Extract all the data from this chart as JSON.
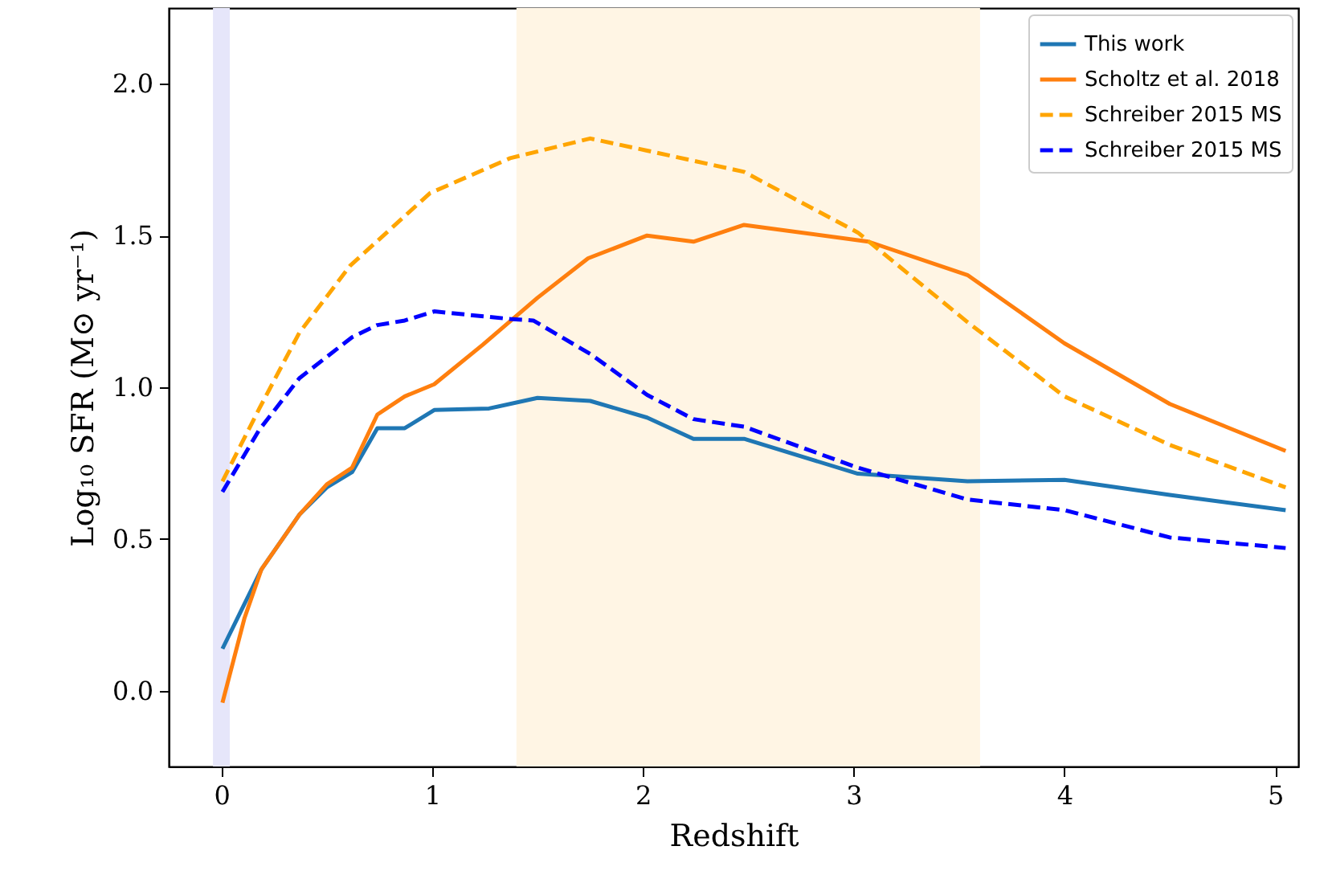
{
  "chart_data": {
    "type": "line",
    "xlabel": "Redshift",
    "ylabel": "Log₁₀ SFR (M⊙ yr⁻¹)",
    "xlim": [
      -0.25,
      5.11
    ],
    "ylim": [
      -0.25,
      2.25
    ],
    "xticks": [
      0,
      1,
      2,
      3,
      4,
      5
    ],
    "yticks": [
      {
        "value": 0,
        "label": "0.0"
      },
      {
        "value": 0.5,
        "label": "0.5"
      },
      {
        "value": 1,
        "label": "1.0"
      },
      {
        "value": 1.5,
        "label": "1.5"
      },
      {
        "value": 2,
        "label": "2.0"
      }
    ],
    "grid": false,
    "legend": "top right",
    "bands": [
      {
        "axis": "x",
        "from": -0.04,
        "to": 0.04,
        "color": "#e6e6fa"
      },
      {
        "axis": "x",
        "from": 1.4,
        "to": 3.6,
        "color": "#fff5e4"
      }
    ],
    "series": [
      {
        "name": "This work",
        "color": "#1f77b4",
        "line_style": "solid",
        "x": [
          0.005,
          0.19,
          0.37,
          0.5,
          0.62,
          0.74,
          0.87,
          1.01,
          1.27,
          1.5,
          1.75,
          2.02,
          2.24,
          2.48,
          3.02,
          3.54,
          4.0,
          4.5,
          5.05
        ],
        "values": [
          0.138,
          0.4,
          0.58,
          0.67,
          0.72,
          0.865,
          0.865,
          0.925,
          0.93,
          0.965,
          0.955,
          0.9,
          0.83,
          0.83,
          0.715,
          0.69,
          0.695,
          0.645,
          0.595
        ]
      },
      {
        "name": "Scholtz et al. 2018",
        "color": "#ff7f0e",
        "line_style": "solid",
        "x": [
          0.005,
          0.11,
          0.19,
          0.37,
          0.5,
          0.62,
          0.74,
          0.87,
          1.01,
          1.24,
          1.5,
          1.74,
          2.02,
          2.24,
          2.48,
          3.07,
          3.54,
          4.0,
          4.5,
          5.05
        ],
        "values": [
          -0.04,
          0.24,
          0.4,
          0.58,
          0.68,
          0.735,
          0.91,
          0.97,
          1.01,
          1.14,
          1.295,
          1.425,
          1.5,
          1.48,
          1.535,
          1.48,
          1.37,
          1.145,
          0.945,
          0.79
        ]
      },
      {
        "name": "Schreiber 2015 MS",
        "color": "#ffa500",
        "line_style": "dashed",
        "x": [
          0.005,
          0.18,
          0.37,
          0.61,
          0.99,
          1.37,
          1.75,
          2.02,
          2.48,
          3.02,
          3.54,
          4.0,
          4.5,
          5.05
        ],
        "values": [
          0.69,
          0.93,
          1.18,
          1.4,
          1.64,
          1.755,
          1.82,
          1.78,
          1.71,
          1.51,
          1.215,
          0.97,
          0.81,
          0.67
        ]
      },
      {
        "name": "Schreiber 2015 MS",
        "color": "#0000ff",
        "line_style": "dashed",
        "x": [
          0.005,
          0.18,
          0.37,
          0.62,
          0.74,
          0.87,
          1.01,
          1.37,
          1.48,
          1.75,
          2.02,
          2.24,
          2.48,
          3.02,
          3.54,
          4.0,
          4.5,
          5.05
        ],
        "values": [
          0.655,
          0.86,
          1.03,
          1.165,
          1.205,
          1.22,
          1.25,
          1.225,
          1.22,
          1.11,
          0.975,
          0.895,
          0.87,
          0.735,
          0.63,
          0.595,
          0.505,
          0.47
        ]
      }
    ]
  }
}
